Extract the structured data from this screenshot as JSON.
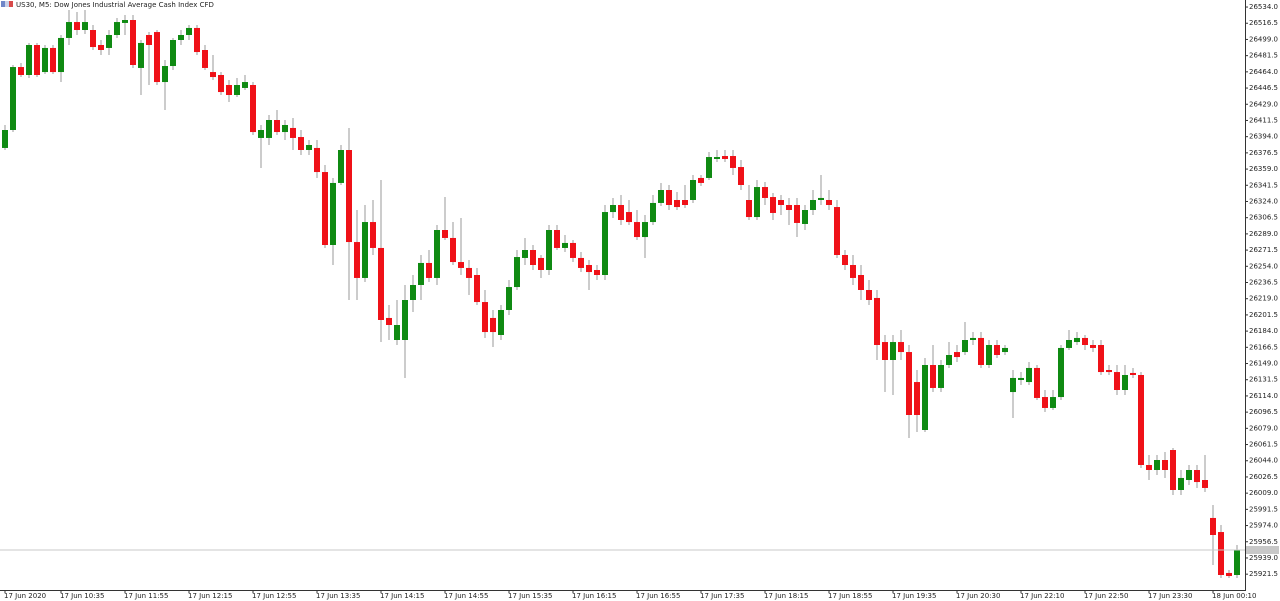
{
  "chart_data": {
    "type": "candlestick",
    "title": "US30, M5:  Dow Jones Industrial Average Cash Index CFD",
    "up_color": "#0f8a12",
    "down_color": "#ef1118",
    "wick_color": "#9a9a9a",
    "categories": [
      "17 Jun 2020",
      null,
      null,
      null,
      null,
      null,
      null,
      "17 Jun 10:35",
      null,
      null,
      null,
      null,
      null,
      null,
      null,
      "17 Jun 11:55",
      null,
      null,
      null,
      null,
      null,
      null,
      null,
      "17 Jun 12:15",
      null,
      null,
      null,
      null,
      null,
      null,
      null,
      "17 Jun 12:55",
      null,
      null,
      null,
      null,
      null,
      null,
      null,
      "17 Jun 13:35",
      null,
      null,
      null,
      null,
      null,
      null,
      null,
      "17 Jun 14:15",
      null,
      null,
      null,
      null,
      null,
      null,
      null,
      "17 Jun 14:55",
      null,
      null,
      null,
      null,
      null,
      null,
      null,
      "17 Jun 15:35",
      null,
      null,
      null,
      null,
      null,
      null,
      null,
      "17 Jun 16:15",
      null,
      null,
      null,
      null,
      null,
      null,
      null,
      "17 Jun 16:55",
      null,
      null,
      null,
      null,
      null,
      null,
      null,
      "17 Jun 17:35",
      null,
      null,
      null,
      null,
      null,
      null,
      null,
      "17 Jun 18:15",
      null,
      null,
      null,
      null,
      null,
      null,
      null,
      "17 Jun 18:55",
      null,
      null,
      null,
      null,
      null,
      null,
      null,
      "17 Jun 19:35",
      null,
      null,
      null,
      null,
      null,
      null,
      null,
      "17 Jun 20:30",
      null,
      null,
      null,
      null,
      null,
      null,
      null,
      "17 Jun 22:10",
      null,
      null,
      null,
      null,
      null,
      null,
      null,
      "17 Jun 22:50",
      null,
      null,
      null,
      null,
      null,
      null,
      null,
      "17 Jun 23:30",
      null,
      null,
      null,
      null,
      null,
      null,
      null,
      "18 Jun 00:10",
      null,
      null,
      null
    ],
    "open": [
      26381.8,
      26401.2,
      26469.2,
      26460.6,
      26493.0,
      26463.8,
      26489.8,
      26463.8,
      26500.6,
      26517.8,
      26509.2,
      26509.2,
      26493.0,
      26489.8,
      26503.8,
      26516.8,
      26520.0,
      26468.2,
      26503.8,
      26507.0,
      26453.0,
      26470.3,
      26498.4,
      26503.8,
      26511.4,
      26487.6,
      26463.8,
      26460.6,
      26449.8,
      26439.0,
      26446.6,
      26449.8,
      26392.6,
      26392.6,
      26412.0,
      26399.0,
      26403.4,
      26393.6,
      26379.6,
      26381.8,
      26355.8,
      26277.0,
      26344.0,
      26379.6,
      26280.2,
      26241.4,
      26301.8,
      26273.8,
      26198.2,
      26174.4,
      26174.4,
      26217.6,
      26233.8,
      26257.6,
      26241.4,
      26293.2,
      26284.6,
      26258.6,
      26252.2,
      26244.6,
      26215.4,
      26198.2,
      26179.8,
      26206.8,
      26231.6,
      26263.0,
      26271.6,
      26263.0,
      26250.0,
      26293.2,
      26273.8,
      26279.2,
      26263.0,
      26255.4,
      26250.0,
      26244.6,
      26312.6,
      26320.2,
      26312.6,
      26301.8,
      26285.6,
      26301.8,
      26322.4,
      26336.4,
      26325.6,
      26325.6,
      26325.6,
      26349.4,
      26349.4,
      26369.9,
      26373.1,
      26373.1,
      26361.2,
      26325.6,
      26307.2,
      26339.6,
      26328.8,
      26325.6,
      26320.2,
      26320.2,
      26299.7,
      26314.8,
      26325.6,
      26325.6,
      26318.0,
      26266.2,
      26255.4,
      26244.6,
      26228.4,
      26219.8,
      26172.2,
      26152.8,
      26172.2,
      26161.4,
      26129.0,
      26077.2,
      26147.4,
      26122.6,
      26147.4,
      26161.4,
      26161.4,
      26174.4,
      26176.6,
      26147.4,
      26169.0,
      26161.4,
      26118.2,
      26131.2,
      26129.0,
      26144.2,
      26112.8,
      26101.0,
      26112.8,
      26165.8,
      26172.2,
      26176.6,
      26169.0,
      26169.0,
      26142.0,
      26139.8,
      26120.4,
      26138.8,
      26136.6,
      26039.4,
      26034.0,
      26044.8,
      26055.6,
      26012.4,
      26023.2,
      26034.0,
      26023.2,
      25982.2,
      25967.0,
      25922.8,
      25920.6
    ],
    "high": [
      26406.6,
      26471.4,
      26473.6,
      26495.2,
      26495.2,
      26493.0,
      26493.0,
      26503.8,
      26530.8,
      26528.6,
      26530.8,
      26514.6,
      26498.4,
      26509.2,
      26522.2,
      26525.4,
      26525.4,
      26498.4,
      26507.0,
      26509.2,
      26476.8,
      26500.6,
      26509.2,
      26514.6,
      26514.6,
      26493.0,
      26482.2,
      26463.8,
      26455.2,
      26457.4,
      26460.6,
      26453.0,
      26406.6,
      26417.4,
      26422.8,
      26412.0,
      26414.2,
      26401.2,
      26390.4,
      26390.4,
      26363.4,
      26349.4,
      26385.0,
      26403.4,
      26314.8,
      26320.2,
      26325.6,
      26347.2,
      26212.2,
      26217.6,
      26233.8,
      26244.6,
      26266.2,
      26271.6,
      26298.6,
      26328.8,
      26301.8,
      26306.2,
      26260.8,
      26252.2,
      26228.4,
      26206.8,
      26212.2,
      26239.2,
      26271.6,
      26284.6,
      26277.0,
      26266.2,
      26298.6,
      26298.6,
      26287.8,
      26282.4,
      26269.4,
      26260.8,
      26255.4,
      26320.2,
      26327.8,
      26331.0,
      26325.6,
      26314.8,
      26309.4,
      26331.0,
      26344.0,
      26341.8,
      26334.2,
      26341.8,
      26352.6,
      26352.6,
      26377.4,
      26379.6,
      26379.6,
      26379.6,
      26368.8,
      26341.8,
      26347.2,
      26345.0,
      26333.2,
      26331.0,
      26327.8,
      26327.8,
      26320.2,
      26336.4,
      26352.6,
      26336.4,
      26325.6,
      26271.6,
      26266.2,
      26255.4,
      26239.2,
      26228.4,
      26179.8,
      26179.8,
      26185.2,
      26169.0,
      26142.0,
      26155.0,
      26169.0,
      26152.8,
      26172.2,
      26169.0,
      26193.8,
      26183.0,
      26183.0,
      26174.4,
      26174.4,
      26169.0,
      26142.0,
      26139.8,
      26150.6,
      26147.4,
      26120.4,
      26120.4,
      26169.0,
      26185.2,
      26183.0,
      26179.8,
      26174.4,
      26174.4,
      26147.4,
      26147.4,
      26147.4,
      26144.2,
      26139.8,
      26050.2,
      26050.2,
      26053.4,
      26057.8,
      26034.0,
      26039.4,
      26039.4,
      26050.2,
      25996.2,
      25974.6,
      25926.0,
      25953.0
    ],
    "low": [
      26379.6,
      26399.0,
      26458.4,
      26457.4,
      26458.4,
      26461.7,
      26461.7,
      26453.0,
      26493.0,
      26503.8,
      26504.9,
      26487.6,
      26482.2,
      26482.2,
      26500.6,
      26503.8,
      26468.2,
      26439.0,
      26449.8,
      26449.8,
      26422.8,
      26466.0,
      26493.0,
      26498.4,
      26482.2,
      26466.0,
      26455.2,
      26439.0,
      26431.4,
      26436.8,
      26444.4,
      26395.8,
      26360.2,
      26385.0,
      26395.8,
      26390.4,
      26379.6,
      26374.2,
      26374.2,
      26349.4,
      26273.8,
      26255.4,
      26341.8,
      26217.6,
      26217.6,
      26237.0,
      26266.2,
      26172.2,
      26174.4,
      26169.0,
      26133.4,
      26204.6,
      26217.6,
      26237.0,
      26233.8,
      26282.4,
      26255.4,
      26244.6,
      26223.0,
      26212.2,
      26176.6,
      26166.8,
      26174.4,
      26201.4,
      26228.4,
      26255.4,
      26250.0,
      26241.4,
      26244.6,
      26271.6,
      26269.4,
      26258.6,
      26247.8,
      26228.4,
      26239.2,
      26239.2,
      26306.2,
      26298.6,
      26298.6,
      26282.4,
      26263.0,
      26298.6,
      26319.1,
      26314.8,
      26314.8,
      26317.0,
      26322.4,
      26340.7,
      26347.2,
      26366.6,
      26366.6,
      26352.6,
      26336.4,
      26304.0,
      26304.0,
      26320.2,
      26304.0,
      26309.4,
      26298.6,
      26285.6,
      26293.2,
      26309.4,
      26320.2,
      26314.8,
      26263.0,
      26250.0,
      26233.8,
      26217.6,
      26212.2,
      26152.8,
      26118.2,
      26115.0,
      26152.8,
      26068.6,
      26075.0,
      26075.0,
      26118.2,
      26118.2,
      26144.2,
      26150.6,
      26158.2,
      26169.0,
      26144.2,
      26144.2,
      26155.0,
      26158.2,
      26090.2,
      26125.8,
      26125.8,
      26109.6,
      26096.6,
      26098.8,
      26109.6,
      26163.6,
      26169.0,
      26163.6,
      26161.4,
      26136.6,
      26136.6,
      26115.0,
      26115.0,
      26133.4,
      26036.2,
      26023.2,
      26028.6,
      26025.4,
      26007.0,
      26007.0,
      26017.8,
      26014.6,
      26010.2,
      25931.4,
      25917.4,
      25917.4,
      25917.4
    ],
    "close": [
      26401.2,
      26469.2,
      26460.6,
      26493.0,
      26460.6,
      26489.8,
      26463.8,
      26500.6,
      26517.8,
      26509.2,
      26517.8,
      26490.8,
      26487.6,
      26503.8,
      26517.8,
      26520.0,
      26471.4,
      26495.2,
      26493.0,
      26453.0,
      26470.3,
      26498.4,
      26503.8,
      26511.4,
      26485.4,
      26468.2,
      26458.4,
      26442.2,
      26439.0,
      26449.8,
      26453.0,
      26399.0,
      26401.2,
      26412.0,
      26399.0,
      26406.6,
      26392.6,
      26379.6,
      26385.0,
      26355.8,
      26277.0,
      26344.0,
      26379.6,
      26280.2,
      26241.4,
      26301.8,
      26273.8,
      26196.0,
      26190.6,
      26190.6,
      26217.6,
      26233.8,
      26257.6,
      26241.4,
      26293.2,
      26284.6,
      26258.6,
      26252.2,
      26241.4,
      26215.4,
      26183.0,
      26183.0,
      26206.8,
      26231.6,
      26264.0,
      26271.6,
      26255.4,
      26250.0,
      26293.2,
      26273.8,
      26279.2,
      26263.0,
      26252.2,
      26247.8,
      26244.6,
      26312.6,
      26320.2,
      26304.0,
      26301.8,
      26285.6,
      26301.8,
      26322.4,
      26336.4,
      26320.2,
      26318.0,
      26320.2,
      26347.2,
      26344.0,
      26372.0,
      26372.0,
      26369.9,
      26360.2,
      26341.8,
      26307.2,
      26339.6,
      26327.8,
      26311.6,
      26320.2,
      26314.8,
      26300.8,
      26314.8,
      26325.6,
      26327.8,
      26320.2,
      26266.2,
      26255.4,
      26241.4,
      26228.4,
      26217.6,
      26169.0,
      26152.8,
      26172.2,
      26161.4,
      26093.4,
      26093.4,
      26147.4,
      26122.6,
      26147.4,
      26158.2,
      26156.0,
      26174.4,
      26176.6,
      26147.4,
      26169.0,
      26158.2,
      26165.8,
      26133.4,
      26133.4,
      26144.2,
      26111.8,
      26101.0,
      26112.8,
      26165.8,
      26174.4,
      26176.6,
      26169.0,
      26165.8,
      26139.8,
      26139.8,
      26120.4,
      26136.6,
      26136.6,
      26039.4,
      26034.0,
      26044.8,
      26034.0,
      26012.4,
      26025.4,
      26034.0,
      26021.0,
      26014.6,
      25963.8,
      25920.6,
      25919.5,
      25947.6
    ],
    "ylim": [
      25904.4,
      26541.6
    ],
    "yticks": [
      {
        "value": 26534,
        "label": "26534.0"
      },
      26516.5,
      {
        "value": 26499,
        "label": "26499.0"
      },
      26481.5,
      {
        "value": 26464,
        "label": "26464.0"
      },
      26446.5,
      {
        "value": 26429,
        "label": "26429.0"
      },
      26411.5,
      {
        "value": 26394,
        "label": "26394.0"
      },
      26376.5,
      {
        "value": 26359,
        "label": "26359.0"
      },
      26341.5,
      {
        "value": 26324,
        "label": "26324.0"
      },
      26306.5,
      {
        "value": 26289,
        "label": "26289.0"
      },
      26271.5,
      {
        "value": 26254,
        "label": "26254.0"
      },
      26236.5,
      {
        "value": 26219,
        "label": "26219.0"
      },
      26201.5,
      {
        "value": 26184,
        "label": "26184.0"
      },
      26166.5,
      {
        "value": 26149,
        "label": "26149.0"
      },
      26131.5,
      {
        "value": 26114,
        "label": "26114.0"
      },
      26096.5,
      {
        "value": 26079,
        "label": "26079.0"
      },
      26061.5,
      {
        "value": 26044,
        "label": "26044.0"
      },
      26026.5,
      {
        "value": 26009,
        "label": "26009.0"
      },
      25991.5,
      {
        "value": 25974,
        "label": "25974.0"
      },
      25956.5,
      {
        "value": 25939,
        "label": "25939.0"
      },
      25921.5
    ],
    "grid": false
  }
}
